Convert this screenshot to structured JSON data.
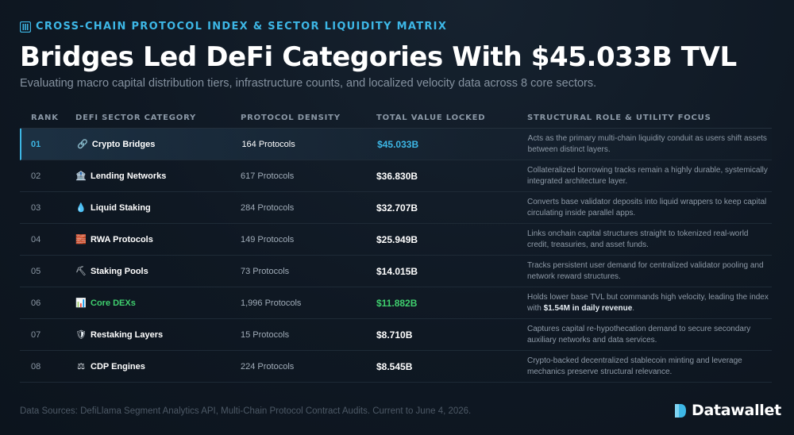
{
  "header": {
    "kicker": "CROSS-CHAIN PROTOCOL INDEX & SECTOR LIQUIDITY MATRIX",
    "kicker_icon": "bar-columns-icon",
    "title": "Bridges Led DeFi Categories With $45.033B TVL",
    "subtitle": "Evaluating macro capital distribution tiers, infrastructure counts, and localized velocity data across 8 core sectors."
  },
  "table": {
    "columns": [
      "RANK",
      "DEFI SECTOR CATEGORY",
      "PROTOCOL DENSITY",
      "TOTAL VALUE LOCKED",
      "STRUCTURAL ROLE & UTILITY FOCUS"
    ],
    "rows": [
      {
        "rank": "01",
        "icon": "🔗",
        "category": "Crypto Bridges",
        "density": "164 Protocols",
        "tvl": "$45.033B",
        "role": "Acts as the primary multi-chain liquidity conduit as users shift assets between distinct layers."
      },
      {
        "rank": "02",
        "icon": "🏦",
        "category": "Lending Networks",
        "density": "617 Protocols",
        "tvl": "$36.830B",
        "role": "Collateralized borrowing tracks remain a highly durable, systemically integrated architecture layer."
      },
      {
        "rank": "03",
        "icon": "💧",
        "category": "Liquid Staking",
        "density": "284 Protocols",
        "tvl": "$32.707B",
        "role": "Converts base validator deposits into liquid wrappers to keep capital circulating inside parallel apps."
      },
      {
        "rank": "04",
        "icon": "🧱",
        "category": "RWA Protocols",
        "density": "149 Protocols",
        "tvl": "$25.949B",
        "role": "Links onchain capital structures straight to tokenized real-world credit, treasuries, and asset funds."
      },
      {
        "rank": "05",
        "icon": "⛏",
        "category": "Staking Pools",
        "density": "73 Protocols",
        "tvl": "$14.015B",
        "role": "Tracks persistent user demand for centralized validator pooling and network reward structures."
      },
      {
        "rank": "06",
        "icon": "📊",
        "category": "Core DEXs",
        "density": "1,996 Protocols",
        "tvl": "$11.882B",
        "role_pre": "Holds lower base TVL but commands high velocity, leading the index with ",
        "role_bold": "$1.54M in daily revenue",
        "role_post": "."
      },
      {
        "rank": "07",
        "icon": "🛡",
        "category": "Restaking Layers",
        "density": "15 Protocols",
        "tvl": "$8.710B",
        "role": "Captures capital re-hypothecation demand to secure secondary auxiliary networks and data services."
      },
      {
        "rank": "08",
        "icon": "⚖",
        "category": "CDP Engines",
        "density": "224 Protocols",
        "tvl": "$8.545B",
        "role": "Crypto-backed decentralized stablecoin minting and leverage mechanics preserve structural relevance."
      }
    ]
  },
  "footer": {
    "sources": "Data Sources: DefiLlama Segment Analytics API, Multi-Chain Protocol Contract Audits. Current to June 4, 2026."
  },
  "brand": {
    "name": "Datawallet",
    "logo_icon": "datawallet-logo-icon"
  },
  "colors": {
    "accent": "#3db7e6",
    "positive": "#3fcf6e",
    "background": "#0f1823"
  }
}
